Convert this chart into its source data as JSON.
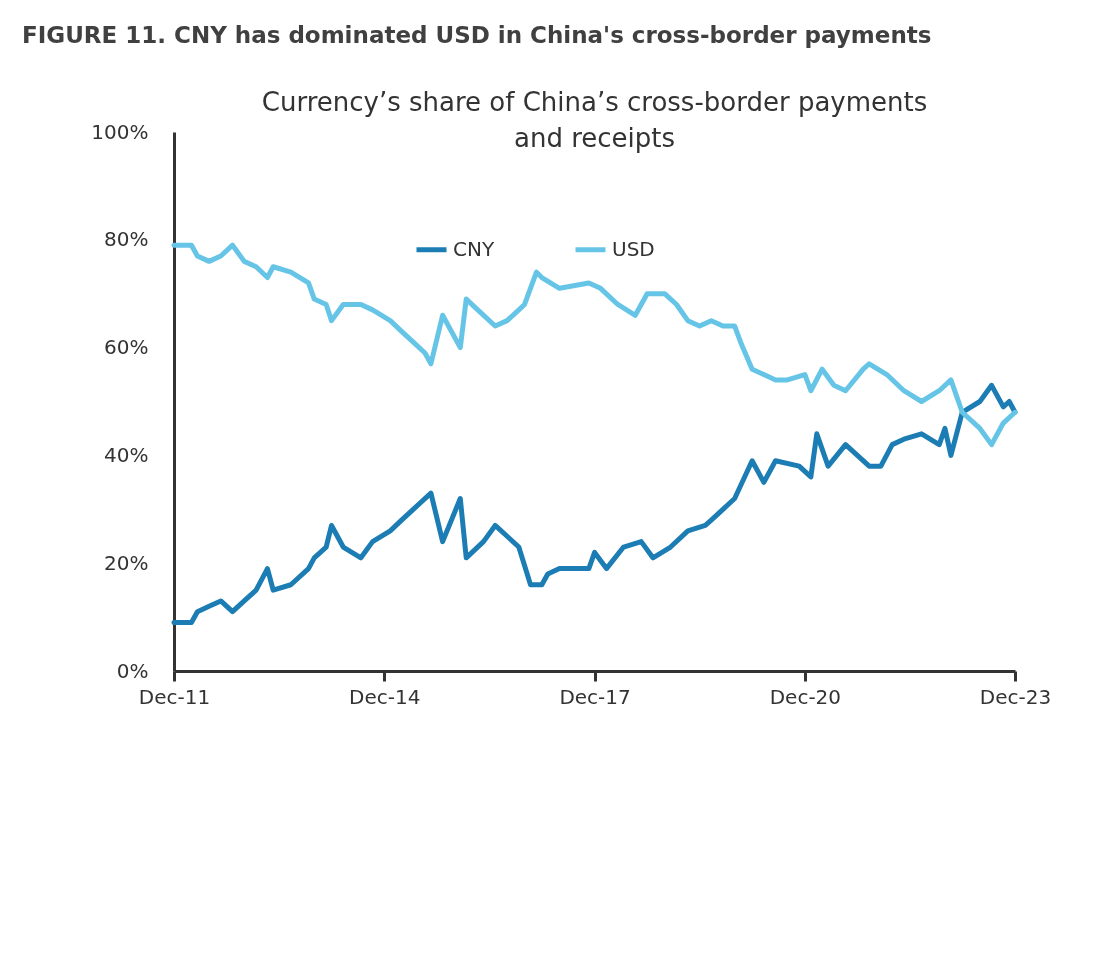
{
  "chart_data": {
    "type": "line",
    "title": "FIGURE 11. CNY has dominated USD in China's cross-border payments",
    "subtitle": "Currency’s share of China’s cross-border payments and receipts",
    "series": [
      {
        "name": "CNY",
        "color": "#1b7db3",
        "x": [
          "2011-12",
          "2012-03",
          "2012-04",
          "2012-06",
          "2012-08",
          "2012-10",
          "2012-12",
          "2013-02",
          "2013-04",
          "2013-05",
          "2013-08",
          "2013-11",
          "2013-12",
          "2014-02",
          "2014-03",
          "2014-05",
          "2014-08",
          "2014-10",
          "2015-01",
          "2015-03",
          "2015-05",
          "2015-08",
          "2015-10",
          "2016-01",
          "2016-02",
          "2016-05",
          "2016-07",
          "2016-09",
          "2016-11",
          "2017-01",
          "2017-03",
          "2017-04",
          "2017-06",
          "2017-11",
          "2017-12",
          "2018-02",
          "2018-05",
          "2018-08",
          "2018-10",
          "2019-01",
          "2019-04",
          "2019-07",
          "2019-08",
          "2019-10",
          "2019-12",
          "2020-03",
          "2020-05",
          "2020-07",
          "2020-11",
          "2021-01",
          "2021-02",
          "2021-04",
          "2021-07",
          "2021-11",
          "2022-01",
          "2022-03",
          "2022-05",
          "2022-08",
          "2022-11",
          "2022-12",
          "2023-01",
          "2023-03",
          "2023-06",
          "2023-08",
          "2023-10",
          "2023-11",
          "2023-12"
        ],
        "values": [
          9,
          9,
          11,
          12,
          13,
          11,
          13,
          15,
          19,
          15,
          16,
          19,
          21,
          23,
          27,
          23,
          21,
          24,
          26,
          28,
          30,
          33,
          24,
          32,
          21,
          24,
          27,
          25,
          23,
          16,
          16,
          18,
          19,
          19,
          22,
          19,
          23,
          24,
          21,
          23,
          26,
          27,
          28,
          30,
          32,
          39,
          35,
          39,
          38,
          36,
          44,
          38,
          42,
          38,
          38,
          42,
          43,
          44,
          42,
          45,
          40,
          48,
          50,
          53,
          49,
          50,
          48
        ]
      },
      {
        "name": "USD",
        "color": "#66c5e6",
        "x": [
          "2011-12",
          "2012-03",
          "2012-04",
          "2012-06",
          "2012-08",
          "2012-10",
          "2012-12",
          "2013-02",
          "2013-04",
          "2013-05",
          "2013-08",
          "2013-11",
          "2013-12",
          "2014-02",
          "2014-03",
          "2014-05",
          "2014-08",
          "2014-10",
          "2015-01",
          "2015-03",
          "2015-05",
          "2015-07",
          "2015-08",
          "2015-10",
          "2016-01",
          "2016-02",
          "2016-04",
          "2016-07",
          "2016-09",
          "2016-11",
          "2016-12",
          "2017-02",
          "2017-03",
          "2017-06",
          "2017-11",
          "2018-01",
          "2018-04",
          "2018-07",
          "2018-09",
          "2018-12",
          "2019-02",
          "2019-04",
          "2019-06",
          "2019-08",
          "2019-10",
          "2019-12",
          "2020-01",
          "2020-03",
          "2020-05",
          "2020-07",
          "2020-09",
          "2020-12",
          "2021-01",
          "2021-03",
          "2021-05",
          "2021-07",
          "2021-10",
          "2021-11",
          "2022-02",
          "2022-05",
          "2022-08",
          "2022-11",
          "2023-01",
          "2023-03",
          "2023-06",
          "2023-08",
          "2023-10",
          "2023-12"
        ],
        "values": [
          79,
          79,
          77,
          76,
          77,
          79,
          76,
          75,
          73,
          75,
          74,
          72,
          69,
          68,
          65,
          68,
          68,
          67,
          65,
          63,
          61,
          59,
          57,
          66,
          60,
          69,
          67,
          64,
          65,
          67,
          68,
          74,
          73,
          71,
          72,
          71,
          68,
          66,
          70,
          70,
          68,
          65,
          64,
          65,
          64,
          64,
          61,
          56,
          55,
          54,
          54,
          55,
          52,
          56,
          53,
          52,
          56,
          57,
          55,
          52,
          50,
          52,
          54,
          48,
          45,
          42,
          46,
          48
        ]
      }
    ],
    "xlim": [
      "2011-12",
      "2023-12"
    ],
    "xticks": [
      {
        "value": "2011-12",
        "label": "Dec-11"
      },
      {
        "value": "2014-12",
        "label": "Dec-14"
      },
      {
        "value": "2017-12",
        "label": "Dec-17"
      },
      {
        "value": "2020-12",
        "label": "Dec-20"
      },
      {
        "value": "2023-12",
        "label": "Dec-23"
      }
    ],
    "ylim": [
      0,
      100
    ],
    "yticks": [
      {
        "value": 0,
        "label": "0%"
      },
      {
        "value": 20,
        "label": "20%"
      },
      {
        "value": 40,
        "label": "40%"
      },
      {
        "value": 60,
        "label": "60%"
      },
      {
        "value": 80,
        "label": "80%"
      },
      {
        "value": 100,
        "label": "100%"
      }
    ],
    "grid": false,
    "legend": "top"
  }
}
